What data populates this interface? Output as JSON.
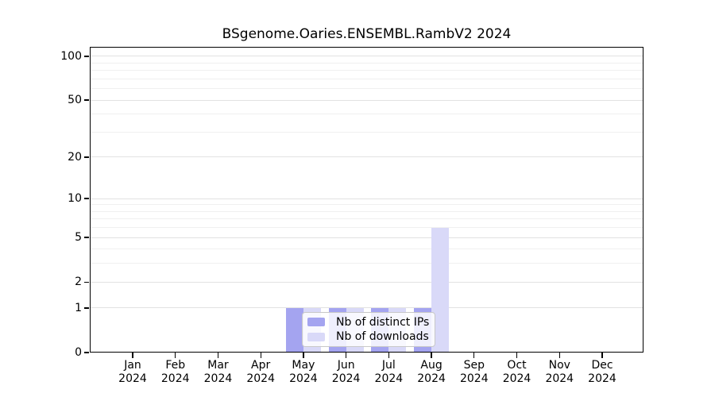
{
  "chart_data": {
    "type": "bar",
    "title": "BSgenome.Oaries.ENSEMBL.RambV2 2024",
    "x_categories": [
      "Jan",
      "Feb",
      "Mar",
      "Apr",
      "May",
      "Jun",
      "Jul",
      "Aug",
      "Sep",
      "Oct",
      "Nov",
      "Dec"
    ],
    "x_year": "2024",
    "series": [
      {
        "name": "Nb of distinct IPs",
        "color": "#a4a4f0",
        "values": [
          0,
          0,
          0,
          0,
          1,
          1,
          1,
          1,
          0,
          0,
          0,
          0
        ]
      },
      {
        "name": "Nb of downloads",
        "color": "#d9d9f8",
        "values": [
          0,
          0,
          0,
          0,
          1,
          1,
          1,
          6,
          0,
          0,
          0,
          0
        ]
      }
    ],
    "y_scale": "log10(1+x)",
    "y_tick_values": [
      0,
      1,
      2,
      5,
      10,
      20,
      50,
      100
    ],
    "y_gridline_values": [
      1,
      2,
      3,
      4,
      5,
      6,
      7,
      8,
      9,
      10,
      20,
      30,
      40,
      50,
      60,
      70,
      80,
      90,
      100
    ],
    "ylim": [
      0,
      116
    ],
    "grid": true,
    "legend_position": "inside-bottom-center",
    "colors": {
      "axis": "#000000",
      "grid_minor": "#f0f0f0",
      "grid_major": "#e2e2e2",
      "legend_border": "#c8c8c8",
      "background": "#ffffff"
    }
  }
}
